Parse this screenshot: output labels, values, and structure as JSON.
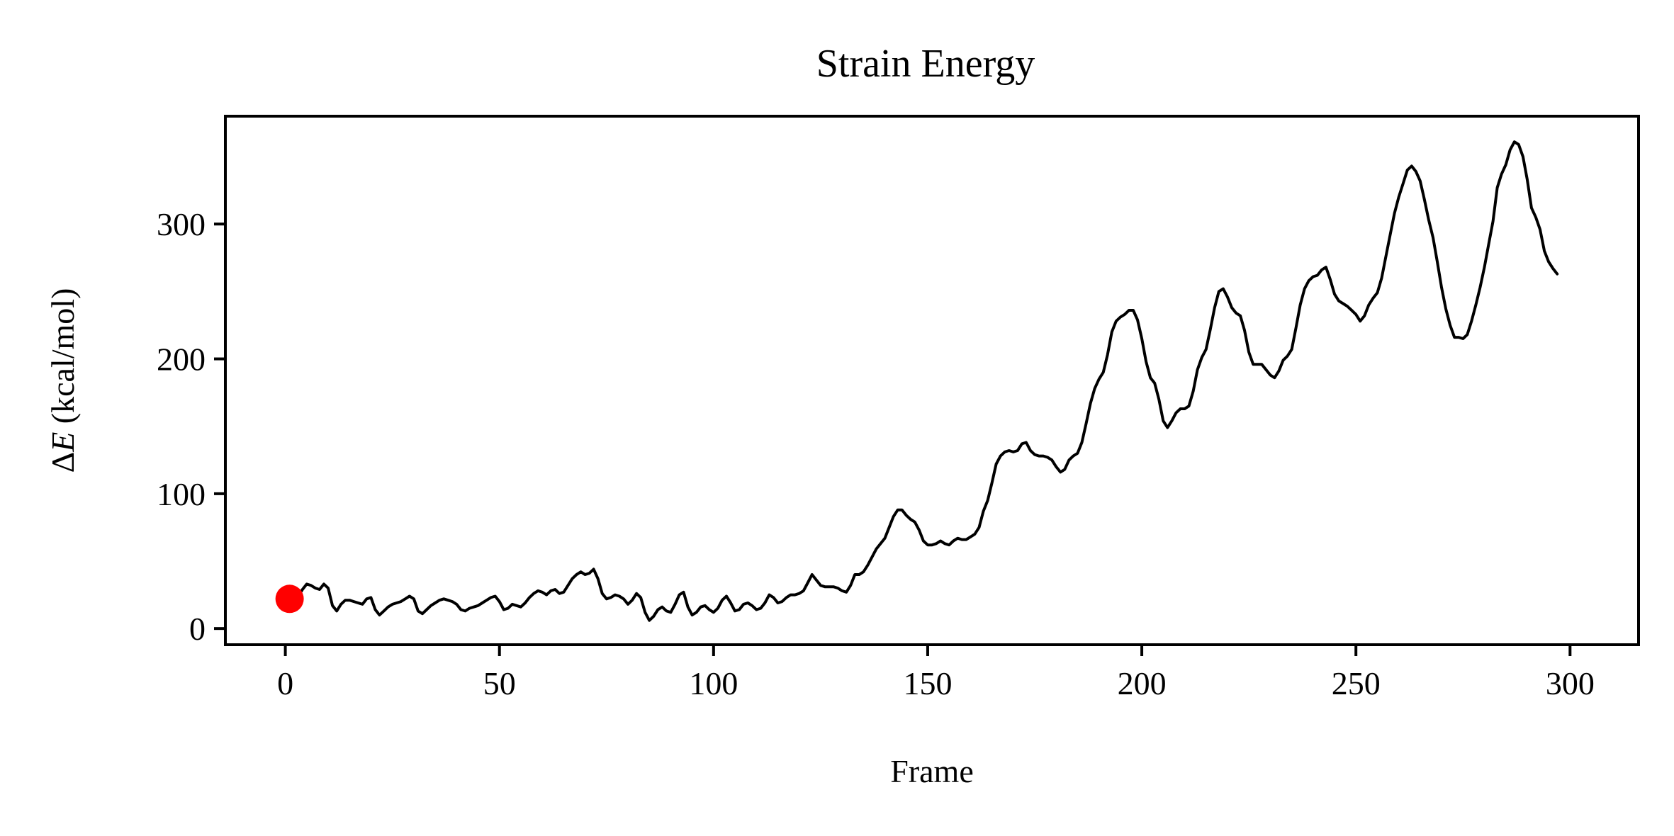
{
  "chart_data": {
    "type": "line",
    "title": "Strain Energy",
    "xlabel": "Frame",
    "ylabel_prefix": "Δ",
    "ylabel_italic": "E",
    "ylabel_suffix": " (kcal/mol)",
    "xlim": [
      -14,
      316
    ],
    "ylim": [
      -12,
      380
    ],
    "xticks": [
      0,
      50,
      100,
      150,
      200,
      250,
      300
    ],
    "yticks": [
      0,
      100,
      200,
      300
    ],
    "grid": false,
    "line_color": "#000000",
    "marker_color": "#ff0000",
    "marker": {
      "x": 1,
      "y": 22
    },
    "series": [
      {
        "points": [
          [
            1,
            22
          ],
          [
            2,
            19
          ],
          [
            3,
            24
          ],
          [
            4,
            29
          ],
          [
            5,
            33
          ],
          [
            6,
            32
          ],
          [
            7,
            30
          ],
          [
            8,
            29
          ],
          [
            9,
            33
          ],
          [
            10,
            30
          ],
          [
            11,
            17
          ],
          [
            12,
            13
          ],
          [
            13,
            18
          ],
          [
            14,
            21
          ],
          [
            15,
            21
          ],
          [
            16,
            20
          ],
          [
            17,
            19
          ],
          [
            18,
            18
          ],
          [
            19,
            22
          ],
          [
            20,
            23
          ],
          [
            21,
            14
          ],
          [
            22,
            10
          ],
          [
            23,
            13
          ],
          [
            24,
            16
          ],
          [
            25,
            18
          ],
          [
            26,
            19
          ],
          [
            27,
            20
          ],
          [
            28,
            22
          ],
          [
            29,
            24
          ],
          [
            30,
            22
          ],
          [
            31,
            13
          ],
          [
            32,
            11
          ],
          [
            33,
            14
          ],
          [
            34,
            17
          ],
          [
            35,
            19
          ],
          [
            36,
            21
          ],
          [
            37,
            22
          ],
          [
            38,
            21
          ],
          [
            39,
            20
          ],
          [
            40,
            18
          ],
          [
            41,
            14
          ],
          [
            42,
            13
          ],
          [
            43,
            15
          ],
          [
            44,
            16
          ],
          [
            45,
            17
          ],
          [
            46,
            19
          ],
          [
            47,
            21
          ],
          [
            48,
            23
          ],
          [
            49,
            24
          ],
          [
            50,
            20
          ],
          [
            51,
            14
          ],
          [
            52,
            15
          ],
          [
            53,
            18
          ],
          [
            54,
            17
          ],
          [
            55,
            16
          ],
          [
            56,
            19
          ],
          [
            57,
            23
          ],
          [
            58,
            26
          ],
          [
            59,
            28
          ],
          [
            60,
            27
          ],
          [
            61,
            25
          ],
          [
            62,
            28
          ],
          [
            63,
            29
          ],
          [
            64,
            26
          ],
          [
            65,
            27
          ],
          [
            66,
            32
          ],
          [
            67,
            37
          ],
          [
            68,
            40
          ],
          [
            69,
            42
          ],
          [
            70,
            40
          ],
          [
            71,
            41
          ],
          [
            72,
            44
          ],
          [
            73,
            37
          ],
          [
            74,
            26
          ],
          [
            75,
            22
          ],
          [
            76,
            23
          ],
          [
            77,
            25
          ],
          [
            78,
            24
          ],
          [
            79,
            22
          ],
          [
            80,
            18
          ],
          [
            81,
            21
          ],
          [
            82,
            26
          ],
          [
            83,
            23
          ],
          [
            84,
            12
          ],
          [
            85,
            6
          ],
          [
            86,
            9
          ],
          [
            87,
            14
          ],
          [
            88,
            16
          ],
          [
            89,
            13
          ],
          [
            90,
            12
          ],
          [
            91,
            18
          ],
          [
            92,
            25
          ],
          [
            93,
            27
          ],
          [
            94,
            16
          ],
          [
            95,
            10
          ],
          [
            96,
            12
          ],
          [
            97,
            16
          ],
          [
            98,
            17
          ],
          [
            99,
            14
          ],
          [
            100,
            12
          ],
          [
            101,
            15
          ],
          [
            102,
            21
          ],
          [
            103,
            24
          ],
          [
            104,
            19
          ],
          [
            105,
            13
          ],
          [
            106,
            14
          ],
          [
            107,
            18
          ],
          [
            108,
            19
          ],
          [
            109,
            17
          ],
          [
            110,
            14
          ],
          [
            111,
            15
          ],
          [
            112,
            19
          ],
          [
            113,
            25
          ],
          [
            114,
            23
          ],
          [
            115,
            19
          ],
          [
            116,
            20
          ],
          [
            117,
            23
          ],
          [
            118,
            25
          ],
          [
            119,
            25
          ],
          [
            120,
            26
          ],
          [
            121,
            28
          ],
          [
            122,
            34
          ],
          [
            123,
            40
          ],
          [
            124,
            36
          ],
          [
            125,
            32
          ],
          [
            126,
            31
          ],
          [
            127,
            31
          ],
          [
            128,
            31
          ],
          [
            129,
            30
          ],
          [
            130,
            28
          ],
          [
            131,
            27
          ],
          [
            132,
            32
          ],
          [
            133,
            40
          ],
          [
            134,
            40
          ],
          [
            135,
            42
          ],
          [
            136,
            47
          ],
          [
            137,
            53
          ],
          [
            138,
            59
          ],
          [
            139,
            63
          ],
          [
            140,
            67
          ],
          [
            141,
            75
          ],
          [
            142,
            83
          ],
          [
            143,
            88
          ],
          [
            144,
            88
          ],
          [
            145,
            84
          ],
          [
            146,
            81
          ],
          [
            147,
            79
          ],
          [
            148,
            73
          ],
          [
            149,
            65
          ],
          [
            150,
            62
          ],
          [
            151,
            62
          ],
          [
            152,
            63
          ],
          [
            153,
            65
          ],
          [
            154,
            63
          ],
          [
            155,
            62
          ],
          [
            156,
            65
          ],
          [
            157,
            67
          ],
          [
            158,
            66
          ],
          [
            159,
            66
          ],
          [
            160,
            68
          ],
          [
            161,
            70
          ],
          [
            162,
            75
          ],
          [
            163,
            87
          ],
          [
            164,
            95
          ],
          [
            165,
            108
          ],
          [
            166,
            122
          ],
          [
            167,
            128
          ],
          [
            168,
            131
          ],
          [
            169,
            132
          ],
          [
            170,
            131
          ],
          [
            171,
            132
          ],
          [
            172,
            137
          ],
          [
            173,
            138
          ],
          [
            174,
            132
          ],
          [
            175,
            129
          ],
          [
            176,
            128
          ],
          [
            177,
            128
          ],
          [
            178,
            127
          ],
          [
            179,
            125
          ],
          [
            180,
            120
          ],
          [
            181,
            116
          ],
          [
            182,
            118
          ],
          [
            183,
            125
          ],
          [
            184,
            128
          ],
          [
            185,
            130
          ],
          [
            186,
            138
          ],
          [
            187,
            152
          ],
          [
            188,
            167
          ],
          [
            189,
            178
          ],
          [
            190,
            185
          ],
          [
            191,
            190
          ],
          [
            192,
            203
          ],
          [
            193,
            220
          ],
          [
            194,
            228
          ],
          [
            195,
            231
          ],
          [
            196,
            233
          ],
          [
            197,
            236
          ],
          [
            198,
            236
          ],
          [
            199,
            229
          ],
          [
            200,
            215
          ],
          [
            201,
            198
          ],
          [
            202,
            186
          ],
          [
            203,
            182
          ],
          [
            204,
            170
          ],
          [
            205,
            154
          ],
          [
            206,
            149
          ],
          [
            207,
            154
          ],
          [
            208,
            160
          ],
          [
            209,
            163
          ],
          [
            210,
            163
          ],
          [
            211,
            165
          ],
          [
            212,
            176
          ],
          [
            213,
            192
          ],
          [
            214,
            201
          ],
          [
            215,
            207
          ],
          [
            216,
            222
          ],
          [
            217,
            238
          ],
          [
            218,
            250
          ],
          [
            219,
            252
          ],
          [
            220,
            246
          ],
          [
            221,
            238
          ],
          [
            222,
            234
          ],
          [
            223,
            232
          ],
          [
            224,
            221
          ],
          [
            225,
            205
          ],
          [
            226,
            196
          ],
          [
            227,
            196
          ],
          [
            228,
            196
          ],
          [
            229,
            192
          ],
          [
            230,
            188
          ],
          [
            231,
            186
          ],
          [
            232,
            191
          ],
          [
            233,
            199
          ],
          [
            234,
            202
          ],
          [
            235,
            207
          ],
          [
            236,
            223
          ],
          [
            237,
            240
          ],
          [
            238,
            252
          ],
          [
            239,
            258
          ],
          [
            240,
            261
          ],
          [
            241,
            262
          ],
          [
            242,
            266
          ],
          [
            243,
            268
          ],
          [
            244,
            259
          ],
          [
            245,
            248
          ],
          [
            246,
            243
          ],
          [
            247,
            241
          ],
          [
            248,
            239
          ],
          [
            249,
            236
          ],
          [
            250,
            233
          ],
          [
            251,
            228
          ],
          [
            252,
            232
          ],
          [
            253,
            240
          ],
          [
            254,
            245
          ],
          [
            255,
            249
          ],
          [
            256,
            260
          ],
          [
            257,
            276
          ],
          [
            258,
            292
          ],
          [
            259,
            308
          ],
          [
            260,
            320
          ],
          [
            261,
            330
          ],
          [
            262,
            340
          ],
          [
            263,
            343
          ],
          [
            264,
            339
          ],
          [
            265,
            332
          ],
          [
            266,
            318
          ],
          [
            267,
            303
          ],
          [
            268,
            290
          ],
          [
            269,
            272
          ],
          [
            270,
            253
          ],
          [
            271,
            237
          ],
          [
            272,
            225
          ],
          [
            273,
            216
          ],
          [
            274,
            216
          ],
          [
            275,
            215
          ],
          [
            276,
            218
          ],
          [
            277,
            228
          ],
          [
            278,
            240
          ],
          [
            279,
            253
          ],
          [
            280,
            268
          ],
          [
            281,
            285
          ],
          [
            282,
            302
          ],
          [
            283,
            327
          ],
          [
            284,
            337
          ],
          [
            285,
            344
          ],
          [
            286,
            355
          ],
          [
            287,
            361
          ],
          [
            288,
            359
          ],
          [
            289,
            350
          ],
          [
            290,
            333
          ],
          [
            291,
            312
          ],
          [
            292,
            305
          ],
          [
            293,
            296
          ],
          [
            294,
            280
          ],
          [
            295,
            272
          ],
          [
            296,
            267
          ],
          [
            297,
            263
          ]
        ]
      }
    ]
  }
}
